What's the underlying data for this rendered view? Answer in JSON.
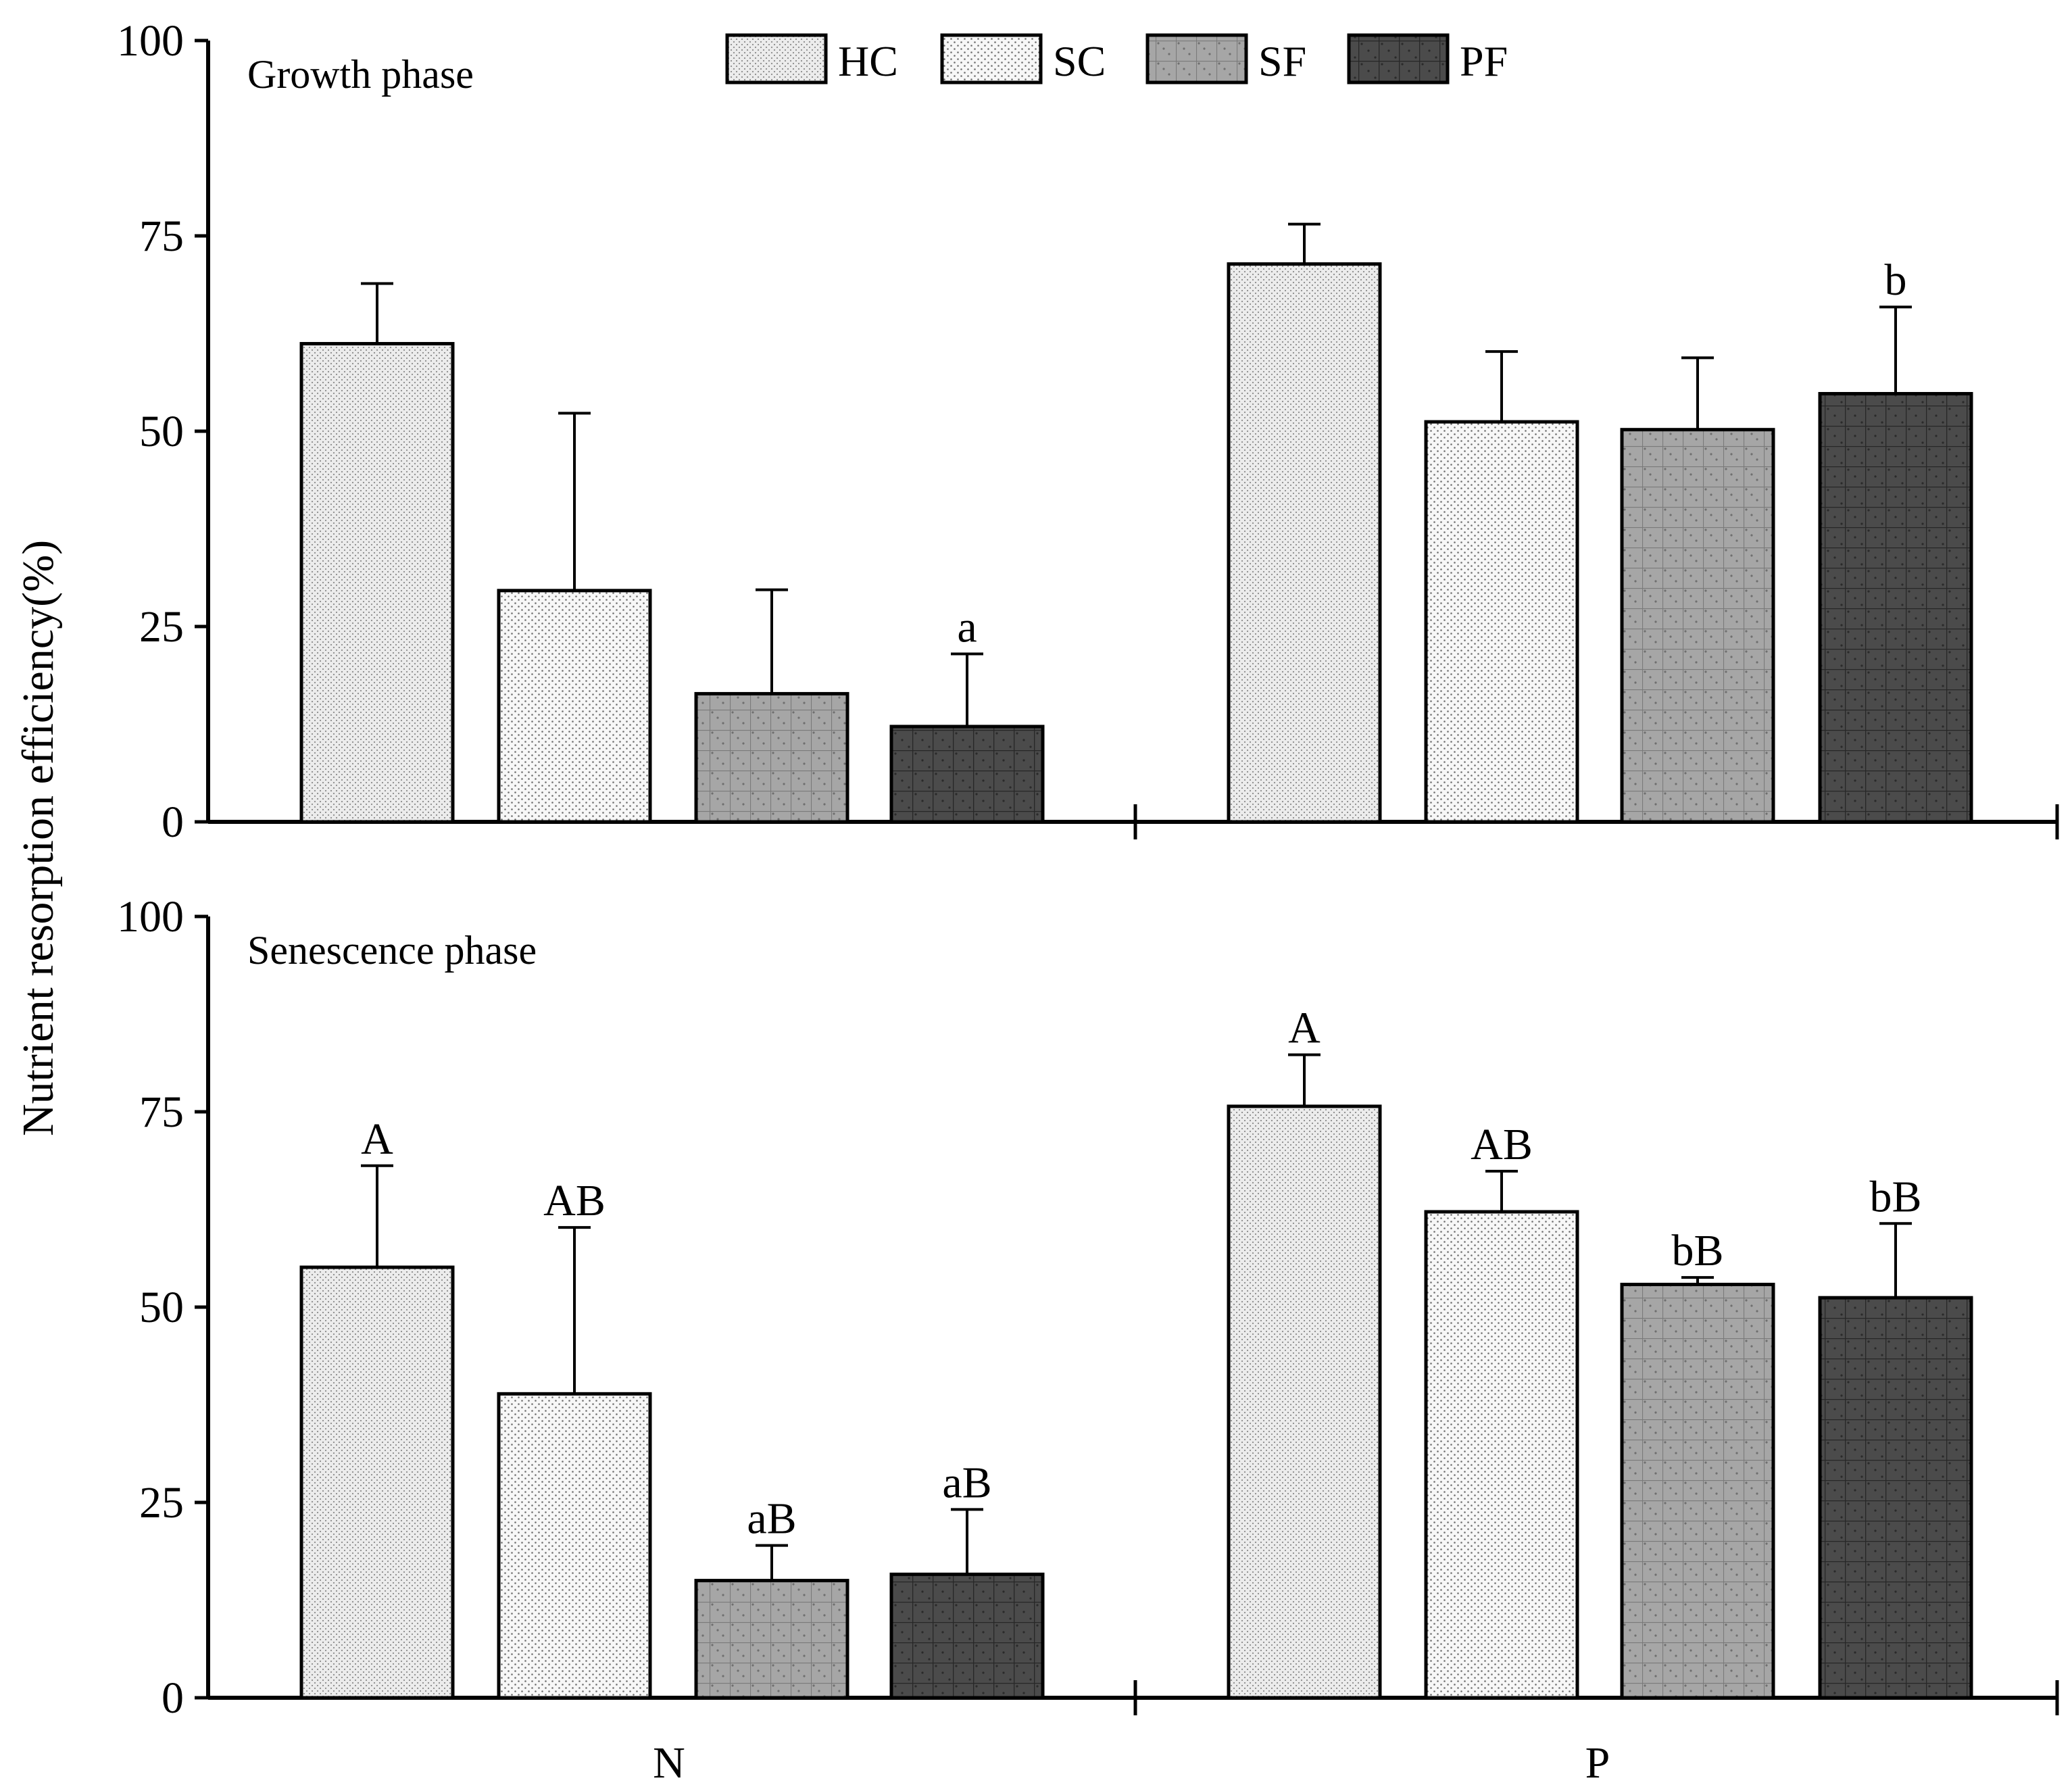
{
  "chart_data": {
    "type": "bar",
    "ylabel": "Nutrient resorption efficiency(%)",
    "ylim": [
      0,
      100
    ],
    "yticks": [
      "0",
      "25",
      "50",
      "75",
      "100"
    ],
    "categories": [
      "N",
      "P"
    ],
    "legend": [
      "HC",
      "SC",
      "SF",
      "PF"
    ],
    "legend_position": "top-center",
    "colors": {
      "HC": "#e6e6e6",
      "SC": "#f3f3f3",
      "SF": "#9a9a9a",
      "PF": "#4a4a4a"
    },
    "panels": [
      {
        "label": "Growth phase",
        "series": [
          {
            "name": "HC",
            "values": [
              61.2,
              71.4
            ],
            "errors": [
              7.7,
              5.1
            ],
            "sig": [
              "",
              ""
            ]
          },
          {
            "name": "SC",
            "values": [
              29.6,
              51.2
            ],
            "errors": [
              22.7,
              9.0
            ],
            "sig": [
              "",
              ""
            ]
          },
          {
            "name": "SF",
            "values": [
              16.4,
              50.2
            ],
            "errors": [
              13.3,
              9.2
            ],
            "sig": [
              "",
              ""
            ]
          },
          {
            "name": "PF",
            "values": [
              12.2,
              54.8
            ],
            "errors": [
              9.3,
              11.1
            ],
            "sig": [
              "a",
              "b"
            ]
          }
        ]
      },
      {
        "label": "Senescence phase",
        "series": [
          {
            "name": "HC",
            "values": [
              55.1,
              75.7
            ],
            "errors": [
              13.0,
              6.6
            ],
            "sig": [
              "A",
              "A"
            ]
          },
          {
            "name": "SC",
            "values": [
              38.9,
              62.2
            ],
            "errors": [
              21.3,
              5.2
            ],
            "sig": [
              "AB",
              "AB"
            ]
          },
          {
            "name": "SF",
            "values": [
              15.0,
              52.9
            ],
            "errors": [
              4.5,
              0.9
            ],
            "sig": [
              "aB",
              "bB"
            ]
          },
          {
            "name": "PF",
            "values": [
              15.8,
              51.2
            ],
            "errors": [
              8.3,
              9.5
            ],
            "sig": [
              "aB",
              "bB"
            ]
          }
        ]
      }
    ]
  }
}
